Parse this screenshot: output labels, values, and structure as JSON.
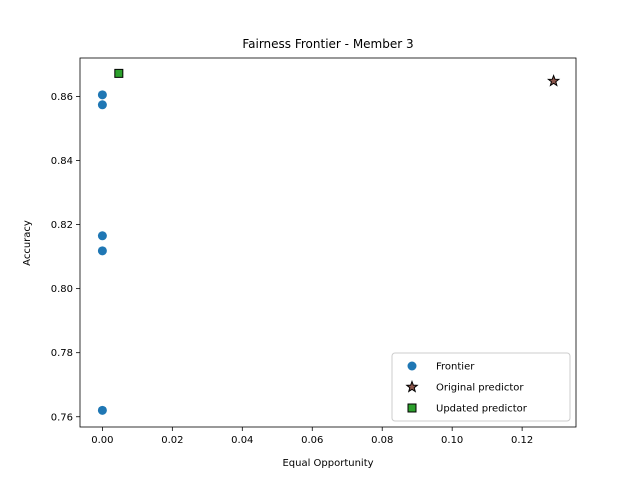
{
  "chart_data": {
    "type": "scatter",
    "title": "Fairness Frontier - Member 3",
    "xlabel": "Equal Opportunity",
    "ylabel": "Accuracy",
    "xlim": [
      -0.0064,
      0.1354
    ],
    "ylim": [
      0.7568,
      0.872
    ],
    "xticks": [
      0.0,
      0.02,
      0.04,
      0.06,
      0.08,
      0.1,
      0.12
    ],
    "xtick_labels": [
      "0.00",
      "0.02",
      "0.04",
      "0.06",
      "0.08",
      "0.10",
      "0.12"
    ],
    "yticks": [
      0.76,
      0.78,
      0.8,
      0.82,
      0.84,
      0.86
    ],
    "ytick_labels": [
      "0.76",
      "0.78",
      "0.80",
      "0.82",
      "0.84",
      "0.86"
    ],
    "grid": false,
    "legend_position": "lower-right",
    "series": [
      {
        "name": "Frontier",
        "marker": "circle",
        "color": "#1f77b4",
        "points": [
          {
            "x": 0.0,
            "y": 0.8605
          },
          {
            "x": 0.0,
            "y": 0.8574
          },
          {
            "x": 0.0,
            "y": 0.8165
          },
          {
            "x": 0.0,
            "y": 0.8118
          },
          {
            "x": 0.0,
            "y": 0.762
          }
        ]
      },
      {
        "name": "Original predictor",
        "marker": "star",
        "color": "#8c564b",
        "edge_color": "#000000",
        "points": [
          {
            "x": 0.129,
            "y": 0.8648
          }
        ]
      },
      {
        "name": "Updated predictor",
        "marker": "square",
        "color": "#2ca02c",
        "edge_color": "#000000",
        "points": [
          {
            "x": 0.0047,
            "y": 0.8672
          }
        ]
      }
    ]
  }
}
